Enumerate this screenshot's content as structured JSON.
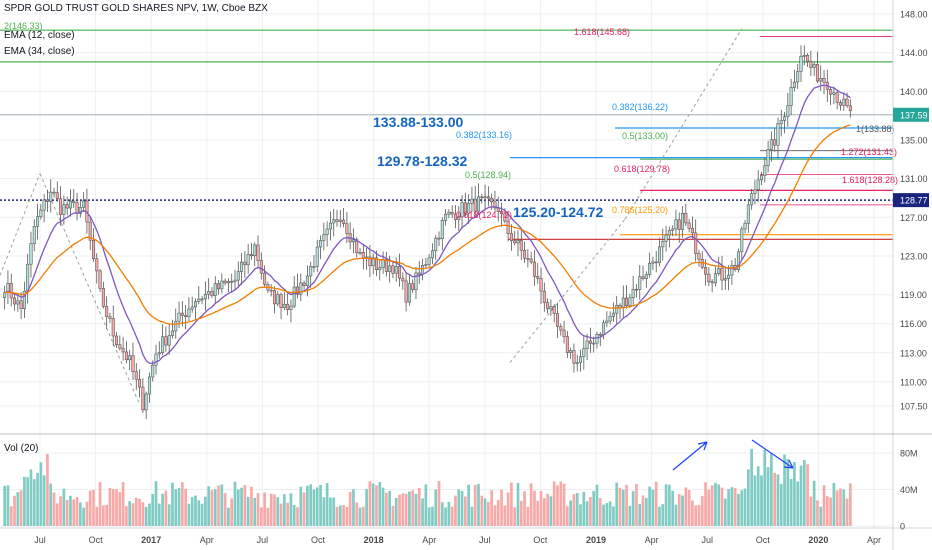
{
  "header": {
    "title": "SPDR GOLD TRUST GOLD SHARES NPV, 1W, Cboe BZX",
    "ema12": "EMA (12, close)",
    "ema34": "EMA (34, close)",
    "vol": "Vol (20)",
    "ghost": "2(146.33)"
  },
  "colors": {
    "up": "#26a69a",
    "down": "#ef5350",
    "candle_up_fill": "#b2dfdb",
    "candle_down_fill": "#f7a9a7",
    "ema12": "#7e57c2",
    "ema34": "#f57c00",
    "grid": "#eceff2",
    "axis_text": "#4a4a4a"
  },
  "chart_data": {
    "type": "candlestick",
    "price_axis": {
      "ticks": [
        "148.00",
        "144.00",
        "140.00",
        "137.59",
        "135.00",
        "131.00",
        "128.77",
        "127.00",
        "123.00",
        "119.00",
        "116.00",
        "113.00",
        "110.00",
        "107.50"
      ],
      "last_price": "137.59",
      "marker_price": "128.77"
    },
    "volume_axis": {
      "ticks": [
        "80M",
        "40M",
        "0"
      ]
    },
    "time_axis": {
      "labels": [
        "Jul",
        "Oct",
        "2017",
        "Apr",
        "Jul",
        "Oct",
        "2018",
        "Apr",
        "Jul",
        "Oct",
        "2019",
        "Apr",
        "Jul",
        "Oct",
        "2020",
        "Apr"
      ]
    },
    "zone_labels": [
      "133.88-133.00",
      "129.78-128.32",
      "125.20-124.72"
    ],
    "fib_labels": [
      {
        "text": "1.618(145.68)",
        "price": 145.68,
        "color": "#e91e63"
      },
      {
        "text": "0.382(136.22)",
        "price": 136.22,
        "color": "#2196f3"
      },
      {
        "text": "0.382(133.16)",
        "price": 133.16,
        "color": "#2196f3"
      },
      {
        "text": "0.5(133.00)",
        "price": 133.0,
        "color": "#4caf50"
      },
      {
        "text": "1(133.88)",
        "price": 133.88,
        "color": "#555555"
      },
      {
        "text": "1.272(131.43)",
        "price": 131.43,
        "color": "#e91e63"
      },
      {
        "text": "0.618(129.78)",
        "price": 129.78,
        "color": "#e91e63"
      },
      {
        "text": "0.5(128.94)",
        "price": 128.94,
        "color": "#4caf50"
      },
      {
        "text": "1.618(128.28)",
        "price": 128.28,
        "color": "#e91e63"
      },
      {
        "text": "0.618(124.72)",
        "price": 124.72,
        "color": "#e91e63"
      },
      {
        "text": "0.786(125.20)",
        "price": 125.2,
        "color": "#ff9800"
      }
    ],
    "horizontal_lines": [
      {
        "price": 146.33,
        "color": "#4caf50"
      },
      {
        "price": 143.05,
        "color": "#4caf50"
      },
      {
        "price": 137.59,
        "color": "#b0bec5"
      },
      {
        "price": 136.22,
        "color": "#2196f3"
      },
      {
        "price": 133.16,
        "color": "#2196f3"
      },
      {
        "price": 133.0,
        "color": "#4caf50"
      },
      {
        "price": 129.78,
        "color": "#e91e63"
      },
      {
        "price": 128.77,
        "color": "#1a237e",
        "dotted": true
      },
      {
        "price": 125.2,
        "color": "#ff9800"
      },
      {
        "price": 124.72,
        "color": "#c62828"
      }
    ],
    "anchors": [
      [
        0,
        120
      ],
      [
        5,
        117.5
      ],
      [
        9,
        126
      ],
      [
        14,
        129.8
      ],
      [
        17,
        128
      ],
      [
        24,
        128
      ],
      [
        29,
        119
      ],
      [
        33,
        115
      ],
      [
        38,
        112
      ],
      [
        42,
        107.8
      ],
      [
        46,
        113
      ],
      [
        52,
        116
      ],
      [
        58,
        118.5
      ],
      [
        64,
        119.5
      ],
      [
        70,
        120.5
      ],
      [
        76,
        124
      ],
      [
        80,
        119
      ],
      [
        86,
        118
      ],
      [
        92,
        121
      ],
      [
        96,
        124
      ],
      [
        102,
        127.5
      ],
      [
        108,
        123
      ],
      [
        113,
        122
      ],
      [
        118,
        122
      ],
      [
        122,
        119
      ],
      [
        126,
        121
      ],
      [
        130,
        124
      ],
      [
        134,
        127
      ],
      [
        140,
        128
      ],
      [
        144,
        128.5
      ],
      [
        150,
        128
      ],
      [
        152,
        126
      ],
      [
        156,
        124
      ],
      [
        160,
        122
      ],
      [
        166,
        117
      ],
      [
        170,
        114
      ],
      [
        174,
        112
      ],
      [
        176,
        113
      ],
      [
        180,
        115
      ],
      [
        186,
        117.5
      ],
      [
        190,
        119
      ],
      [
        194,
        121
      ],
      [
        198,
        123
      ],
      [
        202,
        125
      ],
      [
        206,
        127
      ],
      [
        210,
        124
      ],
      [
        214,
        121
      ],
      [
        218,
        121
      ],
      [
        222,
        122
      ],
      [
        226,
        128
      ],
      [
        230,
        132
      ],
      [
        234,
        135
      ],
      [
        238,
        139
      ],
      [
        242,
        144
      ],
      [
        246,
        142
      ],
      [
        250,
        141
      ],
      [
        254,
        139
      ],
      [
        257,
        137.6
      ]
    ],
    "n_weeks": 258,
    "ema12_last": 139.2,
    "ema34_last": 135.0
  }
}
